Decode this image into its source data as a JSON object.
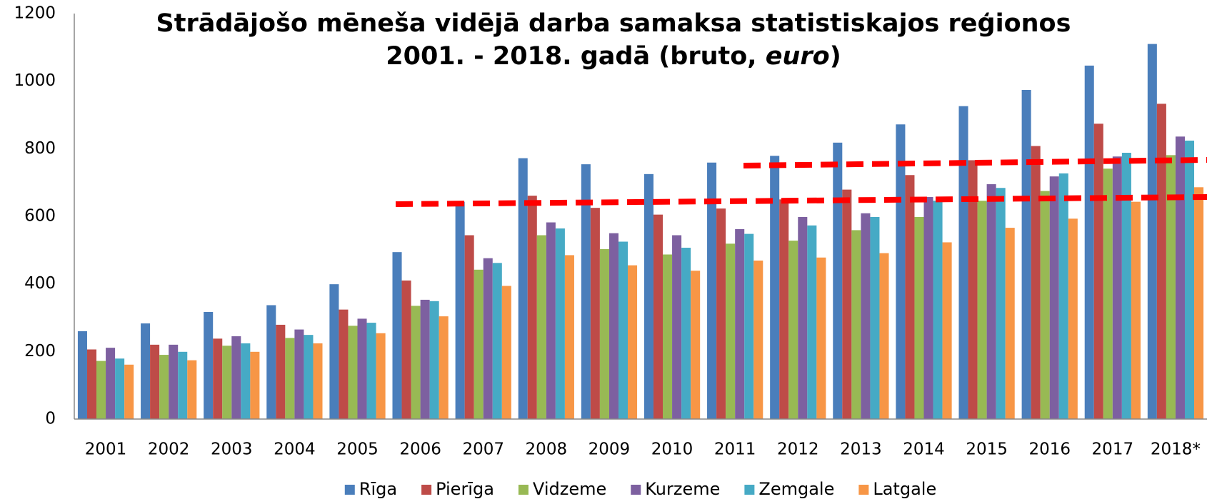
{
  "chart_data": {
    "type": "bar",
    "title": {
      "line1": "Strādājošo mēneša vidējā darba samaksa statistiskajos reģionos",
      "line2": "2001. - 2018. gadā (bruto,",
      "italic": "euro",
      "end": ")"
    },
    "categories": [
      "2001",
      "2002",
      "2003",
      "2004",
      "2005",
      "2006",
      "2007",
      "2008",
      "2009",
      "2010",
      "2011",
      "2012",
      "2013",
      "2014",
      "2015",
      "2016",
      "2017",
      "2018*"
    ],
    "series": [
      {
        "name": "Rīga",
        "color": "#4a7ebb",
        "values": [
          260,
          283,
          317,
          337,
          399,
          494,
          643,
          772,
          754,
          725,
          759,
          779,
          818,
          872,
          926,
          974,
          1046,
          1110
        ]
      },
      {
        "name": "Pierīga",
        "color": "#be4b48",
        "values": [
          206,
          220,
          238,
          279,
          324,
          410,
          544,
          661,
          625,
          605,
          623,
          650,
          679,
          722,
          766,
          808,
          874,
          933
        ]
      },
      {
        "name": "Vidzeme",
        "color": "#98b954",
        "values": [
          172,
          190,
          217,
          240,
          276,
          335,
          442,
          544,
          503,
          487,
          519,
          528,
          559,
          598,
          646,
          675,
          741,
          781
        ]
      },
      {
        "name": "Kurzeme",
        "color": "#7d60a0",
        "values": [
          211,
          220,
          245,
          265,
          297,
          353,
          476,
          582,
          550,
          544,
          562,
          598,
          609,
          657,
          695,
          718,
          777,
          836
        ]
      },
      {
        "name": "Zemgale",
        "color": "#46aac5",
        "values": [
          179,
          199,
          224,
          249,
          285,
          349,
          462,
          564,
          525,
          507,
          548,
          573,
          598,
          646,
          684,
          727,
          788,
          824
        ]
      },
      {
        "name": "Latgale",
        "color": "#f79646",
        "values": [
          161,
          174,
          199,
          224,
          254,
          304,
          394,
          485,
          455,
          439,
          469,
          478,
          491,
          523,
          566,
          593,
          643,
          686
        ]
      }
    ],
    "ylim": [
      0,
      1200
    ],
    "yticks": [
      0,
      200,
      400,
      600,
      800,
      1000,
      1200
    ],
    "grid": false,
    "legend": "bottom"
  }
}
